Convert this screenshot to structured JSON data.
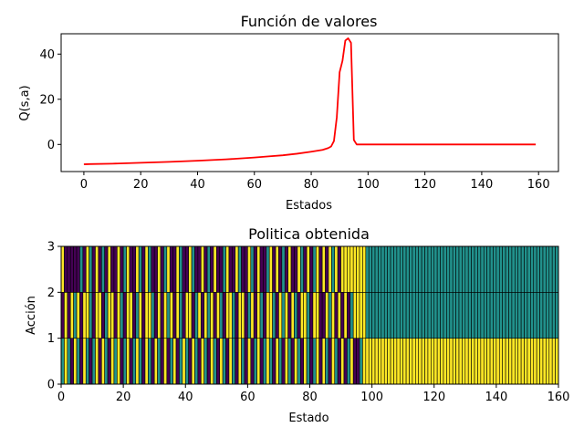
{
  "chart_data": [
    {
      "type": "line",
      "title": "Función de valores",
      "xlabel": "Estados",
      "ylabel": "Q(s,a)",
      "xlim": [
        -8,
        167
      ],
      "ylim": [
        -12,
        49
      ],
      "x_ticks": [
        0,
        20,
        40,
        60,
        80,
        100,
        120,
        140,
        160
      ],
      "y_ticks": [
        0,
        20,
        40
      ],
      "grid": false,
      "series": [
        {
          "color": "#ff0000",
          "x": [
            0,
            2,
            10,
            20,
            30,
            40,
            50,
            60,
            65,
            70,
            75,
            80,
            84,
            86,
            87,
            88,
            89,
            90,
            91,
            92,
            93,
            94,
            95,
            96,
            97,
            100,
            120,
            140,
            159
          ],
          "y": [
            -8.8,
            -8.7,
            -8.5,
            -8.1,
            -7.7,
            -7.2,
            -6.6,
            -5.8,
            -5.3,
            -4.8,
            -4.1,
            -3.2,
            -2.4,
            -1.6,
            -0.9,
            1.5,
            12,
            32,
            37,
            46,
            47,
            45,
            2,
            0,
            0,
            0,
            0,
            0,
            0
          ]
        }
      ]
    },
    {
      "type": "heatmap",
      "title": "Politica obtenida",
      "xlabel": "Estado",
      "ylabel": "Acción",
      "xlim": [
        0,
        160
      ],
      "ylim": [
        0,
        3
      ],
      "x_ticks": [
        0,
        20,
        40,
        60,
        80,
        100,
        120,
        140,
        160
      ],
      "y_ticks": [
        0,
        1,
        2,
        3
      ],
      "grid": false,
      "colormap": "viridis",
      "palette": [
        "#440154",
        "#21918c",
        "#fde725"
      ],
      "row_order": "bottom-to-top (Acción 0, 1, 2)",
      "rows": [
        [
          1,
          2,
          1,
          0,
          2,
          1,
          0,
          2,
          1,
          0,
          1,
          2,
          0,
          2,
          1,
          0,
          2,
          1,
          2,
          0,
          1,
          2,
          0,
          1,
          2,
          1,
          0,
          2,
          1,
          0,
          2,
          1,
          0,
          2,
          0,
          1,
          2,
          0,
          1,
          2,
          1,
          0,
          2,
          1,
          0,
          2,
          1,
          0,
          2,
          1,
          0,
          2,
          1,
          0,
          2,
          1,
          0,
          2,
          1,
          0,
          2,
          0,
          1,
          2,
          0,
          1,
          2,
          1,
          0,
          2,
          1,
          0,
          2,
          1,
          0,
          2,
          1,
          0,
          2,
          1,
          0,
          1,
          2,
          0,
          2,
          1,
          0,
          2,
          1,
          0,
          2,
          0,
          1,
          2,
          0,
          0,
          1,
          2,
          2,
          2,
          2,
          2,
          2,
          2,
          2,
          2,
          2,
          2,
          2,
          2,
          2,
          2,
          2,
          2,
          2,
          2,
          2,
          2,
          2,
          2,
          2,
          2,
          2,
          2,
          2,
          2,
          2,
          2,
          2,
          2,
          2,
          2,
          2,
          2,
          2,
          2,
          2,
          2,
          2,
          2,
          2,
          2,
          2,
          2,
          2,
          2,
          2,
          2,
          2,
          2,
          2,
          2,
          2,
          2,
          2,
          2,
          2,
          2,
          2,
          2
        ],
        [
          0,
          2,
          0,
          2,
          1,
          2,
          0,
          2,
          2,
          1,
          0,
          2,
          2,
          0,
          1,
          2,
          2,
          0,
          2,
          1,
          0,
          2,
          2,
          0,
          1,
          2,
          0,
          2,
          2,
          1,
          0,
          2,
          0,
          2,
          1,
          2,
          0,
          2,
          1,
          0,
          2,
          2,
          0,
          1,
          2,
          0,
          2,
          1,
          2,
          0,
          2,
          1,
          0,
          2,
          2,
          1,
          0,
          2,
          2,
          0,
          1,
          2,
          0,
          2,
          1,
          0,
          2,
          2,
          1,
          0,
          2,
          1,
          2,
          0,
          2,
          1,
          0,
          2,
          2,
          1,
          0,
          2,
          2,
          0,
          0,
          2,
          1,
          2,
          0,
          2,
          0,
          2,
          0,
          1,
          2,
          2,
          2,
          2,
          1,
          1,
          1,
          1,
          1,
          1,
          1,
          1,
          1,
          1,
          1,
          1,
          1,
          1,
          1,
          1,
          1,
          1,
          1,
          1,
          1,
          1,
          1,
          1,
          1,
          1,
          1,
          1,
          1,
          1,
          1,
          1,
          1,
          1,
          1,
          1,
          1,
          1,
          1,
          1,
          1,
          1,
          1,
          1,
          1,
          1,
          1,
          1,
          1,
          1,
          1,
          1,
          1,
          1,
          1,
          1,
          1,
          1,
          1,
          1,
          1,
          1
        ],
        [
          2,
          0,
          0,
          0,
          0,
          0,
          1,
          0,
          2,
          1,
          0,
          2,
          0,
          1,
          0,
          2,
          0,
          0,
          2,
          0,
          1,
          2,
          0,
          0,
          2,
          1,
          0,
          2,
          1,
          0,
          0,
          2,
          0,
          1,
          2,
          0,
          0,
          2,
          1,
          0,
          0,
          2,
          1,
          0,
          0,
          2,
          0,
          1,
          0,
          2,
          0,
          0,
          1,
          2,
          0,
          0,
          2,
          1,
          0,
          0,
          2,
          1,
          0,
          2,
          0,
          0,
          1,
          2,
          0,
          2,
          0,
          1,
          0,
          2,
          0,
          0,
          2,
          1,
          0,
          2,
          0,
          1,
          2,
          0,
          2,
          0,
          2,
          1,
          2,
          0,
          2,
          2,
          2,
          2,
          2,
          2,
          2,
          2,
          1,
          1,
          1,
          1,
          1,
          1,
          1,
          1,
          1,
          1,
          1,
          1,
          1,
          1,
          1,
          1,
          1,
          1,
          1,
          1,
          1,
          1,
          1,
          1,
          1,
          1,
          1,
          1,
          1,
          1,
          1,
          1,
          1,
          1,
          1,
          1,
          1,
          1,
          1,
          1,
          1,
          1,
          1,
          1,
          1,
          1,
          1,
          1,
          1,
          1,
          1,
          1,
          1,
          1,
          1,
          1,
          1,
          1,
          1,
          1,
          1,
          1
        ]
      ]
    }
  ]
}
